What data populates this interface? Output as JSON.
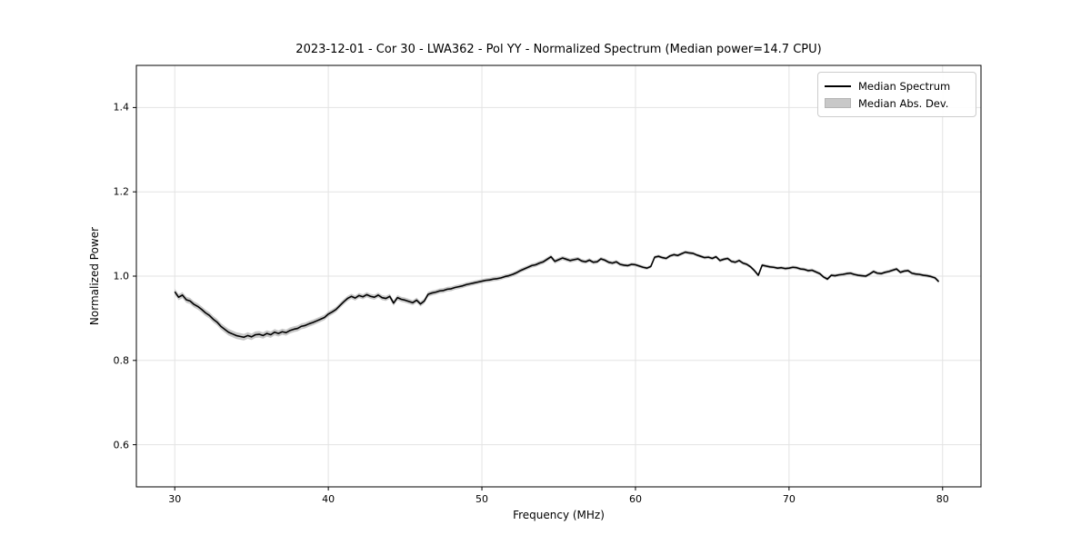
{
  "chart_data": {
    "type": "line",
    "title": "2023-12-01 - Cor 30 - LWA362 - Pol YY - Normalized Spectrum (Median power=14.7 CPU)",
    "xlabel": "Frequency (MHz)",
    "ylabel": "Normalized Power",
    "xlim": [
      27.5,
      82.5
    ],
    "ylim": [
      0.5,
      1.5
    ],
    "xticks": [
      30,
      40,
      50,
      60,
      70,
      80
    ],
    "xtick_labels": [
      "30",
      "40",
      "50",
      "60",
      "70",
      "80"
    ],
    "yticks": [
      0.6,
      0.8,
      1.0,
      1.2,
      1.4
    ],
    "ytick_labels": [
      "0.6",
      "0.8",
      "1.0",
      "1.2",
      "1.4"
    ],
    "grid": true,
    "grid_color": "#e3e3e3",
    "line_color": "#000000",
    "band_color": "#c8c8c8",
    "legend": {
      "position": "upper right",
      "items": [
        {
          "label": "Median Spectrum",
          "type": "line",
          "color": "#000000"
        },
        {
          "label": "Median Abs. Dev.",
          "type": "patch",
          "color": "#c8c8c8"
        }
      ]
    },
    "x_start": 30.0,
    "x_step": 0.25,
    "series": [
      {
        "name": "Median Spectrum",
        "type": "line",
        "color": "#000000",
        "values": [
          0.963,
          0.95,
          0.955,
          0.944,
          0.941,
          0.933,
          0.928,
          0.921,
          0.913,
          0.907,
          0.898,
          0.891,
          0.881,
          0.874,
          0.867,
          0.863,
          0.859,
          0.857,
          0.855,
          0.859,
          0.856,
          0.861,
          0.862,
          0.859,
          0.864,
          0.861,
          0.867,
          0.864,
          0.868,
          0.866,
          0.871,
          0.874,
          0.876,
          0.881,
          0.883,
          0.887,
          0.89,
          0.894,
          0.898,
          0.902,
          0.91,
          0.915,
          0.921,
          0.93,
          0.939,
          0.947,
          0.952,
          0.948,
          0.954,
          0.951,
          0.956,
          0.952,
          0.95,
          0.955,
          0.949,
          0.947,
          0.952,
          0.936,
          0.949,
          0.945,
          0.943,
          0.94,
          0.937,
          0.943,
          0.934,
          0.941,
          0.957,
          0.96,
          0.962,
          0.965,
          0.966,
          0.969,
          0.97,
          0.973,
          0.975,
          0.977,
          0.98,
          0.982,
          0.984,
          0.986,
          0.988,
          0.99,
          0.991,
          0.993,
          0.994,
          0.996,
          0.999,
          1.001,
          1.004,
          1.008,
          1.013,
          1.017,
          1.021,
          1.025,
          1.027,
          1.031,
          1.034,
          1.04,
          1.046,
          1.035,
          1.039,
          1.043,
          1.04,
          1.037,
          1.039,
          1.041,
          1.036,
          1.034,
          1.038,
          1.033,
          1.034,
          1.041,
          1.038,
          1.033,
          1.031,
          1.034,
          1.028,
          1.026,
          1.025,
          1.028,
          1.027,
          1.024,
          1.021,
          1.019,
          1.023,
          1.045,
          1.047,
          1.044,
          1.042,
          1.048,
          1.051,
          1.049,
          1.053,
          1.057,
          1.055,
          1.054,
          1.05,
          1.047,
          1.044,
          1.045,
          1.042,
          1.046,
          1.037,
          1.04,
          1.042,
          1.035,
          1.033,
          1.037,
          1.031,
          1.028,
          1.022,
          1.013,
          1.002,
          1.026,
          1.024,
          1.022,
          1.021,
          1.019,
          1.02,
          1.018,
          1.019,
          1.021,
          1.02,
          1.017,
          1.016,
          1.013,
          1.014,
          1.01,
          1.006,
          0.998,
          0.993,
          1.002,
          1.001,
          1.003,
          1.004,
          1.006,
          1.007,
          1.004,
          1.002,
          1.001,
          1.0,
          1.005,
          1.011,
          1.007,
          1.006,
          1.009,
          1.011,
          1.014,
          1.017,
          1.009,
          1.012,
          1.013,
          1.007,
          1.005,
          1.004,
          1.002,
          1.001,
          0.999,
          0.996,
          0.987
        ]
      },
      {
        "name": "Median Abs. Dev.",
        "type": "band",
        "color": "#c8c8c8",
        "around": "Median Spectrum",
        "halfwidth_x": [
          30,
          34,
          38,
          42,
          46,
          50,
          55,
          60,
          65,
          70,
          75,
          79.75
        ],
        "halfwidth": [
          0.007,
          0.008,
          0.007,
          0.006,
          0.006,
          0.005,
          0.005,
          0.004,
          0.004,
          0.004,
          0.004,
          0.004
        ]
      }
    ]
  }
}
